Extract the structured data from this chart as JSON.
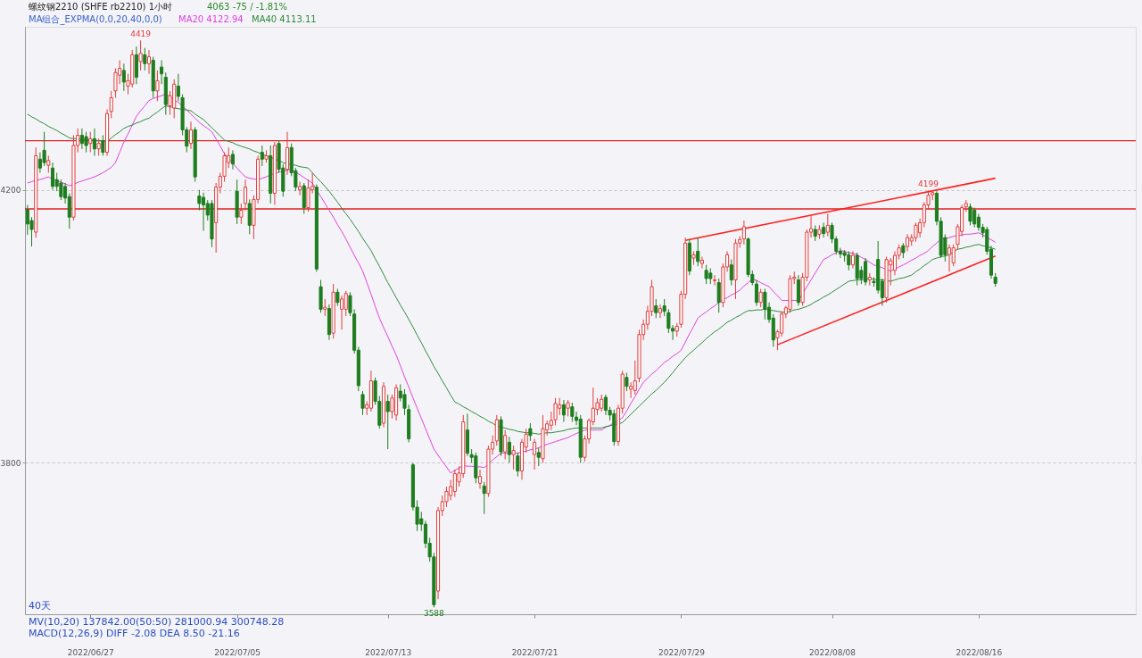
{
  "chart_data": {
    "type": "candlestick",
    "title": "螺纹钢2210 (SHFE rb2210)  1小时",
    "subtitle": "4063  -75 / -1.81%",
    "legend_title": "MA组合_EXPMA(0,0,20,40,0,0)",
    "legend": "top left",
    "ylim": [
      3578,
      4439
    ],
    "yticks": [
      3800,
      4200
    ],
    "grid": "y",
    "categories": [
      null,
      null,
      null,
      null,
      null,
      null,
      null,
      null,
      null,
      null,
      null,
      null,
      null,
      null,
      null,
      "2022/06/27",
      null,
      null,
      null,
      null,
      null,
      null,
      null,
      null,
      null,
      null,
      null,
      null,
      null,
      null,
      null,
      null,
      null,
      null,
      null,
      null,
      null,
      null,
      null,
      null,
      null,
      null,
      null,
      null,
      null,
      null,
      null,
      null,
      null,
      null,
      "2022/07/05",
      null,
      null,
      null,
      null,
      null,
      null,
      null,
      null,
      null,
      null,
      null,
      null,
      null,
      null,
      null,
      null,
      null,
      null,
      null,
      null,
      null,
      null,
      null,
      null,
      null,
      null,
      null,
      null,
      null,
      null,
      null,
      null,
      null,
      null,
      null,
      "2022/07/13",
      null,
      null,
      null,
      null,
      null,
      null,
      null,
      null,
      null,
      null,
      null,
      null,
      null,
      null,
      null,
      null,
      null,
      null,
      null,
      null,
      null,
      null,
      null,
      null,
      null,
      null,
      null,
      null,
      null,
      null,
      null,
      null,
      null,
      null,
      "2022/07/21",
      null,
      null,
      null,
      null,
      null,
      null,
      null,
      null,
      null,
      null,
      null,
      null,
      null,
      null,
      null,
      null,
      null,
      null,
      null,
      null,
      null,
      null,
      null,
      null,
      null,
      null,
      null,
      null,
      null,
      null,
      null,
      null,
      null,
      null,
      "2022/07/29",
      null,
      null,
      null,
      null,
      null,
      null,
      null,
      null,
      null,
      null,
      null,
      null,
      null,
      null,
      null,
      null,
      null,
      null,
      null,
      null,
      null,
      null,
      null,
      null,
      null,
      null,
      null,
      null,
      null,
      null,
      null,
      null,
      null,
      null,
      null,
      "2022/08/08",
      null,
      null,
      null,
      null,
      null,
      null,
      null,
      null,
      null,
      null,
      null,
      null,
      null,
      null,
      null,
      null,
      null,
      null,
      null,
      null,
      null,
      null,
      null,
      null,
      null,
      null,
      null,
      null,
      null,
      null,
      null,
      null,
      null,
      null,
      "2022/08/16",
      null,
      null,
      null,
      null
    ],
    "ohlc": [
      [
        4171,
        4178,
        4134,
        4150
      ],
      [
        4155,
        4160,
        4117,
        4142
      ],
      [
        4138,
        4262,
        4130,
        4250
      ],
      [
        4245,
        4255,
        4225,
        4232
      ],
      [
        4258,
        4285,
        4235,
        4240
      ],
      [
        4236,
        4250,
        4225,
        4243
      ],
      [
        4232,
        4240,
        4200,
        4205
      ],
      [
        4215,
        4225,
        4198,
        4205
      ],
      [
        4210,
        4215,
        4185,
        4190
      ],
      [
        4205,
        4210,
        4180,
        4188
      ],
      [
        4190,
        4195,
        4143,
        4160
      ],
      [
        4160,
        4280,
        4155,
        4265
      ],
      [
        4265,
        4290,
        4255,
        4280
      ],
      [
        4280,
        4290,
        4260,
        4268
      ],
      [
        4278,
        4285,
        4255,
        4265
      ],
      [
        4268,
        4285,
        4255,
        4275
      ],
      [
        4275,
        4290,
        4250,
        4260
      ],
      [
        4260,
        4275,
        4250,
        4268
      ],
      [
        4272,
        4280,
        4250,
        4255
      ],
      [
        4255,
        4318,
        4250,
        4312
      ],
      [
        4315,
        4345,
        4305,
        4335
      ],
      [
        4345,
        4378,
        4335,
        4372
      ],
      [
        4368,
        4390,
        4355,
        4378
      ],
      [
        4375,
        4385,
        4345,
        4358
      ],
      [
        4352,
        4370,
        4340,
        4360
      ],
      [
        4355,
        4405,
        4350,
        4398
      ],
      [
        4398,
        4410,
        4355,
        4365
      ],
      [
        4388,
        4419,
        4375,
        4400
      ],
      [
        4398,
        4408,
        4375,
        4385
      ],
      [
        4385,
        4405,
        4370,
        4395
      ],
      [
        4390,
        4395,
        4335,
        4345
      ],
      [
        4345,
        4375,
        4330,
        4360
      ],
      [
        4380,
        4390,
        4355,
        4370
      ],
      [
        4365,
        4372,
        4310,
        4325
      ],
      [
        4323,
        4345,
        4310,
        4338
      ],
      [
        4320,
        4362,
        4305,
        4355
      ],
      [
        4352,
        4370,
        4330,
        4337
      ],
      [
        4335,
        4340,
        4280,
        4288
      ],
      [
        4288,
        4292,
        4255,
        4264
      ],
      [
        4268,
        4300,
        4260,
        4288
      ],
      [
        4288,
        4292,
        4212,
        4219
      ],
      [
        4191,
        4200,
        4170,
        4180
      ],
      [
        4189,
        4196,
        4140,
        4178
      ],
      [
        4180,
        4185,
        4155,
        4163
      ],
      [
        4180,
        4185,
        4116,
        4128
      ],
      [
        4152,
        4210,
        4108,
        4204
      ],
      [
        4204,
        4225,
        4195,
        4220
      ],
      [
        4220,
        4255,
        4212,
        4250
      ],
      [
        4240,
        4262,
        4232,
        4250
      ],
      [
        4252,
        4258,
        4230,
        4238
      ],
      [
        4198,
        4215,
        4150,
        4160
      ],
      [
        4160,
        4180,
        4150,
        4170
      ],
      [
        4180,
        4215,
        4170,
        4204
      ],
      [
        4180,
        4186,
        4135,
        4148
      ],
      [
        4148,
        4192,
        4128,
        4186
      ],
      [
        4186,
        4250,
        4180,
        4245
      ],
      [
        4255,
        4265,
        4235,
        4245
      ],
      [
        4245,
        4258,
        4240,
        4250
      ],
      [
        4250,
        4265,
        4180,
        4195
      ],
      [
        4195,
        4270,
        4178,
        4265
      ],
      [
        4268,
        4272,
        4225,
        4230
      ],
      [
        4232,
        4238,
        4190,
        4198
      ],
      [
        4230,
        4285,
        4222,
        4262
      ],
      [
        4262,
        4268,
        4220,
        4225
      ],
      [
        4228,
        4232,
        4198,
        4204
      ],
      [
        4200,
        4212,
        4192,
        4205
      ],
      [
        4206,
        4210,
        4165,
        4174
      ],
      [
        4174,
        4215,
        4168,
        4203
      ],
      [
        4200,
        4225,
        4195,
        4205
      ],
      [
        4204,
        4208,
        4080,
        4084
      ],
      [
        4058,
        4068,
        4020,
        4025
      ],
      [
        4025,
        4040,
        4015,
        4028
      ],
      [
        4026,
        4032,
        3980,
        3988
      ],
      [
        3990,
        4062,
        3982,
        4050
      ],
      [
        4050,
        4055,
        4030,
        4035
      ],
      [
        4025,
        4045,
        3995,
        4040
      ],
      [
        4025,
        4052,
        4015,
        4048
      ],
      [
        4045,
        4050,
        4015,
        4020
      ],
      [
        4018,
        4025,
        3960,
        3965
      ],
      [
        3965,
        3970,
        3905,
        3913
      ],
      [
        3900,
        3905,
        3870,
        3880
      ],
      [
        3880,
        3890,
        3870,
        3885
      ],
      [
        3880,
        3935,
        3875,
        3920
      ],
      [
        3920,
        3925,
        3885,
        3890
      ],
      [
        3890,
        3898,
        3850,
        3855
      ],
      [
        3858,
        3918,
        3852,
        3912
      ],
      [
        3890,
        3900,
        3820,
        3875
      ],
      [
        3875,
        3900,
        3865,
        3895
      ],
      [
        3870,
        3915,
        3862,
        3910
      ],
      [
        3905,
        3915,
        3890,
        3895
      ],
      [
        3900,
        3908,
        3870,
        3880
      ],
      [
        3878,
        3885,
        3830,
        3835
      ],
      [
        3797,
        3800,
        3730,
        3735
      ],
      [
        3735,
        3745,
        3700,
        3710
      ],
      [
        3718,
        3728,
        3700,
        3710
      ],
      [
        3710,
        3715,
        3675,
        3682
      ],
      [
        3682,
        3690,
        3655,
        3662
      ],
      [
        3662,
        3668,
        3588,
        3592
      ],
      [
        3612,
        3735,
        3600,
        3730
      ],
      [
        3730,
        3752,
        3722,
        3743
      ],
      [
        3743,
        3765,
        3735,
        3758
      ],
      [
        3752,
        3775,
        3745,
        3765
      ],
      [
        3758,
        3790,
        3750,
        3784
      ],
      [
        3772,
        3795,
        3765,
        3785
      ],
      [
        3784,
        3870,
        3778,
        3860
      ],
      [
        3848,
        3872,
        3810,
        3814
      ],
      [
        3812,
        3820,
        3800,
        3808
      ],
      [
        3810,
        3815,
        3770,
        3778
      ],
      [
        3770,
        3790,
        3762,
        3780
      ],
      [
        3766,
        3772,
        3725,
        3755
      ],
      [
        3755,
        3825,
        3750,
        3820
      ],
      [
        3820,
        3840,
        3812,
        3830
      ],
      [
        3832,
        3870,
        3825,
        3863
      ],
      [
        3863,
        3868,
        3810,
        3816
      ],
      [
        3816,
        3848,
        3805,
        3840
      ],
      [
        3830,
        3838,
        3800,
        3812
      ],
      [
        3812,
        3825,
        3790,
        3818
      ],
      [
        3810,
        3815,
        3780,
        3788
      ],
      [
        3788,
        3835,
        3775,
        3830
      ],
      [
        3823,
        3850,
        3815,
        3842
      ],
      [
        3850,
        3858,
        3832,
        3840
      ],
      [
        3812,
        3835,
        3790,
        3830
      ],
      [
        3815,
        3822,
        3795,
        3808
      ],
      [
        3806,
        3870,
        3800,
        3850
      ],
      [
        3848,
        3862,
        3840,
        3857
      ],
      [
        3855,
        3875,
        3848,
        3862
      ],
      [
        3863,
        3895,
        3855,
        3887
      ],
      [
        3880,
        3895,
        3870,
        3885
      ],
      [
        3885,
        3892,
        3860,
        3870
      ],
      [
        3880,
        3892,
        3868,
        3888
      ],
      [
        3882,
        3888,
        3860,
        3868
      ],
      [
        3867,
        3875,
        3855,
        3862
      ],
      [
        3864,
        3870,
        3800,
        3808
      ],
      [
        3808,
        3840,
        3802,
        3835
      ],
      [
        3835,
        3865,
        3828,
        3862
      ],
      [
        3860,
        3910,
        3855,
        3880
      ],
      [
        3878,
        3895,
        3870,
        3888
      ],
      [
        3880,
        3900,
        3875,
        3893
      ],
      [
        3896,
        3900,
        3870,
        3877
      ],
      [
        3877,
        3882,
        3862,
        3870
      ],
      [
        3872,
        3878,
        3825,
        3831
      ],
      [
        3831,
        3885,
        3825,
        3880
      ],
      [
        3880,
        3935,
        3872,
        3930
      ],
      [
        3925,
        3932,
        3905,
        3912
      ],
      [
        3908,
        3918,
        3895,
        3912
      ],
      [
        3906,
        3950,
        3900,
        3920
      ],
      [
        3924,
        3995,
        3918,
        3988
      ],
      [
        3988,
        4010,
        3980,
        4003
      ],
      [
        4003,
        4030,
        3995,
        4022
      ],
      [
        4022,
        4068,
        4015,
        4058
      ],
      [
        4030,
        4040,
        4012,
        4020
      ],
      [
        4020,
        4032,
        4012,
        4026
      ],
      [
        4030,
        4040,
        4015,
        4022
      ],
      [
        4020,
        4025,
        3990,
        3997
      ],
      [
        3997,
        4002,
        3980,
        3993
      ],
      [
        3993,
        4005,
        3985,
        4000
      ],
      [
        4003,
        4052,
        3998,
        4047
      ],
      [
        4047,
        4130,
        4040,
        4122
      ],
      [
        4122,
        4128,
        4075,
        4081
      ],
      [
        4100,
        4110,
        4090,
        4105
      ],
      [
        4110,
        4130,
        4088,
        4095
      ],
      [
        4092,
        4102,
        4085,
        4097
      ],
      [
        4082,
        4090,
        4062,
        4070
      ],
      [
        4078,
        4085,
        4062,
        4070
      ],
      [
        4067,
        4075,
        4060,
        4068
      ],
      [
        4064,
        4070,
        4020,
        4035
      ],
      [
        4035,
        4092,
        4028,
        4087
      ],
      [
        4087,
        4110,
        4080,
        4105
      ],
      [
        4090,
        4098,
        4060,
        4068
      ],
      [
        4068,
        4128,
        4040,
        4122
      ],
      [
        4122,
        4132,
        4115,
        4127
      ],
      [
        4128,
        4155,
        4120,
        4146
      ],
      [
        4128,
        4130,
        4072,
        4076
      ],
      [
        4076,
        4082,
        4060,
        4064
      ],
      [
        4062,
        4068,
        4030,
        4035
      ],
      [
        4035,
        4055,
        4028,
        4050
      ],
      [
        4050,
        4055,
        4010,
        4025
      ],
      [
        4028,
        4035,
        4005,
        4010
      ],
      [
        4012,
        4018,
        3970,
        3980
      ],
      [
        3983,
        3995,
        3965,
        3992
      ],
      [
        3990,
        4022,
        3985,
        4018
      ],
      [
        4018,
        4030,
        4012,
        4027
      ],
      [
        4025,
        4075,
        4020,
        4070
      ],
      [
        4070,
        4080,
        4062,
        4072
      ],
      [
        4068,
        4075,
        4030,
        4035
      ],
      [
        4035,
        4078,
        4030,
        4072
      ],
      [
        4072,
        4142,
        4066,
        4138
      ],
      [
        4138,
        4162,
        4130,
        4143
      ],
      [
        4142,
        4148,
        4125,
        4132
      ],
      [
        4135,
        4148,
        4128,
        4142
      ],
      [
        4145,
        4152,
        4130,
        4136
      ],
      [
        4138,
        4165,
        4132,
        4148
      ],
      [
        4148,
        4152,
        4122,
        4128
      ],
      [
        4128,
        4132,
        4105,
        4110
      ],
      [
        4110,
        4115,
        4100,
        4106
      ],
      [
        4108,
        4112,
        4095,
        4104
      ],
      [
        4105,
        4110,
        4082,
        4090
      ],
      [
        4090,
        4110,
        4085,
        4104
      ],
      [
        4104,
        4108,
        4060,
        4070
      ],
      [
        4082,
        4088,
        4062,
        4070
      ],
      [
        4095,
        4100,
        4060,
        4065
      ],
      [
        4068,
        4078,
        4060,
        4072
      ],
      [
        4066,
        4072,
        4058,
        4064
      ],
      [
        4098,
        4125,
        4048,
        4053
      ],
      [
        4066,
        4070,
        4030,
        4042
      ],
      [
        4042,
        4102,
        4035,
        4098
      ],
      [
        4090,
        4100,
        4060,
        4096
      ],
      [
        4082,
        4110,
        4075,
        4104
      ],
      [
        4104,
        4120,
        4098,
        4115
      ],
      [
        4118,
        4122,
        4100,
        4108
      ],
      [
        4117,
        4135,
        4110,
        4130
      ],
      [
        4125,
        4135,
        4118,
        4130
      ],
      [
        4130,
        4152,
        4124,
        4148
      ],
      [
        4137,
        4158,
        4130,
        4152
      ],
      [
        4152,
        4182,
        4145,
        4178
      ],
      [
        4178,
        4199,
        4172,
        4192
      ],
      [
        4193,
        4199,
        4185,
        4196
      ],
      [
        4195,
        4198,
        4148,
        4154
      ],
      [
        4154,
        4160,
        4100,
        4104
      ],
      [
        4130,
        4135,
        4095,
        4105
      ],
      [
        4105,
        4120,
        4080,
        4115
      ],
      [
        4093,
        4120,
        4088,
        4115
      ],
      [
        4120,
        4150,
        4112,
        4146
      ],
      [
        4139,
        4178,
        4132,
        4174
      ],
      [
        4175,
        4185,
        4168,
        4180
      ],
      [
        4175,
        4180,
        4148,
        4154
      ],
      [
        4170,
        4174,
        4145,
        4150
      ],
      [
        4160,
        4165,
        4140,
        4145
      ],
      [
        4145,
        4150,
        4130,
        4137
      ],
      [
        4142,
        4146,
        4105,
        4110
      ],
      [
        4113,
        4118,
        4070,
        4075
      ],
      [
        4072,
        4078,
        4058,
        4063
      ]
    ],
    "series": [
      {
        "type": "line",
        "name": "MA20 4122.94",
        "color": "#e040e0",
        "values": [
          4210,
          4212,
          4214,
          4215,
          4217,
          4219,
          4216,
          4214,
          4211,
          4209,
          4206,
          4208,
          4211,
          4213,
          4215,
          4217,
          4219,
          4222,
          4225,
          4229,
          4233,
          4240,
          4255,
          4270,
          4282,
          4295,
          4308,
          4316,
          4323,
          4331,
          4334,
          4336,
          4338,
          4340,
          4337,
          4332,
          4328,
          4323,
          4317,
          4311,
          4305,
          4299,
          4294,
          4290,
          4285,
          4275,
          4264,
          4253,
          4246,
          4239,
          4232,
          4225,
          4219,
          4217,
          4216,
          4215,
          4217,
          4219,
          4222,
          4224,
          4226,
          4227,
          4229,
          4230,
          4226,
          4222,
          4218,
          4214,
          4210,
          4200,
          4190,
          4180,
          4170,
          4160,
          4149,
          4139,
          4128,
          4116,
          4104,
          4093,
          4081,
          4064,
          4047,
          4029,
          4012,
          3998,
          3985,
          3971,
          3958,
          3942,
          3926,
          3911,
          3895,
          3880,
          3865,
          3850,
          3835,
          3820,
          3811,
          3802,
          3794,
          3785,
          3789,
          3792,
          3796,
          3795,
          3795,
          3794,
          3794,
          3793,
          3798,
          3804,
          3809,
          3814,
          3814,
          3814,
          3814,
          3814,
          3816,
          3817,
          3819,
          3820,
          3822,
          3825,
          3827,
          3829,
          3831,
          3833,
          3835,
          3837,
          3840,
          3843,
          3845,
          3848,
          3848,
          3848,
          3848,
          3848,
          3852,
          3855,
          3859,
          3862,
          3866,
          3876,
          3887,
          3897,
          3908,
          3918,
          3924,
          3930,
          3935,
          3941,
          3947,
          3951,
          3956,
          3960,
          3965,
          3977,
          3989,
          4000,
          4012,
          4017,
          4021,
          4026,
          4030,
          4035,
          4039,
          4042,
          4046,
          4049,
          4053,
          4059,
          4064,
          4070,
          4067,
          4064,
          4061,
          4058,
          4051,
          4045,
          4038,
          4038,
          4038,
          4038,
          4038,
          null,
          4058,
          4068,
          4078,
          4088,
          4098,
          4101,
          4105,
          4108,
          4111,
          4110,
          4108,
          4107,
          4105,
          4101,
          4098,
          4094,
          4090,
          4088,
          4086,
          4083,
          4081,
          4084,
          4087,
          4090,
          4093,
          4097,
          4100,
          4104,
          4107,
          4111,
          4117,
          4122,
          4128,
          4129,
          4130,
          4132,
          4133,
          4134,
          4135,
          4135,
          4136,
          4137,
          4134,
          4130,
          4127,
          4123
        ]
      },
      {
        "type": "line",
        "name": "MA40 4113.11",
        "color": "#2e8b3a",
        "values": [
          4311,
          4307,
          4304,
          4300,
          4297,
          4293,
          4290,
          4287,
          4283,
          4280,
          4276,
          4275,
          4275,
          4274,
          4274,
          4273,
          4273,
          4272,
          4272,
          4271,
          4276,
          4281,
          4285,
          4290,
          4293,
          4295,
          4298,
          4300,
          4303,
          4305,
          4310,
          4314,
          4319,
          4323,
          4322,
          4320,
          4319,
          4318,
          4317,
          4316,
          4311,
          4307,
          4303,
          4297,
          4291,
          4285,
          4279,
          4273,
          4271,
          4269,
          4266,
          4264,
          4262,
          4260,
          4257,
          4255,
          4252,
          4250,
          4248,
          4245,
          4243,
          4240,
          4238,
          4237,
          4236,
          4234,
          4233,
          4232,
          4225,
          4218,
          4212,
          4205,
          4198,
          4190,
          4182,
          4173,
          4165,
          4157,
          4148,
          4139,
          4129,
          4120,
          4111,
          4099,
          4088,
          4076,
          4064,
          4053,
          4042,
          4031,
          4021,
          4010,
          3999,
          3987,
          3976,
          3964,
          3953,
          3941,
          3931,
          3920,
          3910,
          3899,
          3889,
          3886,
          3882,
          3879,
          3875,
          3872,
          3868,
          3865,
          3861,
          3858,
          3854,
          3852,
          3851,
          3849,
          3848,
          3846,
          3845,
          3844,
          3844,
          3843,
          3842,
          3843,
          3844,
          3844,
          3845,
          3846,
          3847,
          3849,
          3850,
          3851,
          3851,
          3851,
          3851,
          3851,
          3851,
          3851,
          3853,
          3854,
          3856,
          3857,
          3859,
          3865,
          3871,
          3877,
          3883,
          3889,
          3895,
          3901,
          3906,
          3912,
          3918,
          3925,
          3932,
          3940,
          3947,
          3954,
          3960,
          3965,
          3971,
          3976,
          3982,
          3987,
          3992,
          3996,
          4001,
          4006,
          4009,
          4013,
          4016,
          4020,
          4023,
          4023,
          4024,
          4024,
          4025,
          4024,
          4023,
          4022,
          4021,
          4020,
          4022,
          4024,
          4025,
          4027,
          4029,
          4032,
          4036,
          4039,
          4043,
          4046,
          4050,
          4054,
          4058,
          4062,
          4066,
          4067,
          4068,
          4068,
          4069,
          4070,
          4069,
          4068,
          4068,
          4067,
          4066,
          4068,
          4070,
          4071,
          4073,
          4075,
          4080,
          4084,
          4089,
          4093,
          4098,
          4100,
          4102,
          4103,
          4105,
          4109,
          4113,
          4114,
          4116,
          4117,
          4119,
          4120,
          4118,
          4117,
          4115,
          4113
        ]
      },
      {
        "type": "line",
        "color": "#ff2020",
        "values": [
          null,
          null,
          null,
          null,
          null,
          null,
          null,
          null,
          null,
          null,
          null,
          null,
          null,
          null,
          null,
          null,
          null,
          null,
          null,
          null,
          null,
          null,
          null,
          null,
          null,
          null,
          null,
          null,
          null,
          null,
          null,
          null,
          null,
          null,
          null,
          null,
          null,
          null,
          null,
          null,
          null,
          null,
          null,
          null,
          null,
          null,
          null,
          null,
          null,
          null,
          null,
          null,
          null,
          null,
          null,
          null,
          null,
          null,
          null,
          null,
          null,
          null,
          null,
          null,
          null,
          null,
          null,
          null,
          null,
          null,
          null,
          null,
          null,
          null,
          null,
          null,
          null,
          null,
          null,
          null,
          null,
          null,
          null,
          null,
          null,
          null,
          null,
          null,
          null,
          null,
          null,
          null,
          null,
          null,
          null,
          null,
          null,
          null,
          null,
          null,
          null,
          null,
          null,
          null,
          null,
          null,
          null,
          null,
          null,
          null,
          null,
          null,
          null,
          null,
          null,
          null,
          null,
          null,
          null,
          null,
          null,
          null,
          null,
          null,
          null,
          null,
          null,
          null,
          null,
          null,
          null,
          null,
          null,
          null,
          null,
          null,
          null,
          null,
          null,
          null,
          null,
          null,
          null,
          null,
          null,
          null,
          null,
          null,
          null,
          null,
          null,
          null,
          null,
          null,
          null,
          null,
          null,
          4126,
          null,
          null,
          null,
          null,
          null,
          null,
          null,
          null,
          null,
          null,
          null,
          null,
          null,
          null,
          null,
          null,
          null,
          null,
          null,
          null,
          null,
          null,
          null,
          null,
          null,
          null,
          null,
          null,
          null,
          null,
          null,
          null,
          null,
          null,
          null,
          null,
          null,
          null,
          null,
          null,
          null,
          null,
          null,
          null,
          null,
          null,
          null,
          null,
          null,
          null,
          null,
          null,
          null,
          null,
          null,
          null,
          null,
          null,
          null,
          null,
          null,
          null,
          null,
          null,
          null,
          null,
          null,
          null,
          null,
          null,
          null,
          null,
          null,
          4217
        ]
      },
      {
        "type": "line",
        "color": "#ff2020",
        "values": [
          null,
          null,
          null,
          null,
          null,
          null,
          null,
          null,
          null,
          null,
          null,
          null,
          null,
          null,
          null,
          null,
          null,
          null,
          null,
          null,
          null,
          null,
          null,
          null,
          null,
          null,
          null,
          null,
          null,
          null,
          null,
          null,
          null,
          null,
          null,
          null,
          null,
          null,
          null,
          null,
          null,
          null,
          null,
          null,
          null,
          null,
          null,
          null,
          null,
          null,
          null,
          null,
          null,
          null,
          null,
          null,
          null,
          null,
          null,
          null,
          null,
          null,
          null,
          null,
          null,
          null,
          null,
          null,
          null,
          null,
          null,
          null,
          null,
          null,
          null,
          null,
          null,
          null,
          null,
          null,
          null,
          null,
          null,
          null,
          null,
          null,
          null,
          null,
          null,
          null,
          null,
          null,
          null,
          null,
          null,
          null,
          null,
          null,
          null,
          null,
          null,
          null,
          null,
          null,
          null,
          null,
          null,
          null,
          null,
          null,
          null,
          null,
          null,
          null,
          null,
          null,
          null,
          null,
          null,
          null,
          null,
          null,
          null,
          null,
          null,
          null,
          null,
          null,
          null,
          null,
          null,
          null,
          null,
          null,
          null,
          null,
          null,
          null,
          null,
          null,
          null,
          null,
          null,
          null,
          null,
          null,
          null,
          null,
          null,
          null,
          null,
          null,
          null,
          null,
          null,
          null,
          null,
          null,
          null,
          null,
          null,
          null,
          null,
          null,
          null,
          null,
          null,
          null,
          null,
          null,
          null,
          null,
          null,
          null,
          null,
          null,
          null,
          null,
          null,
          3973,
          null,
          null,
          null,
          null,
          null,
          null,
          null,
          null,
          null,
          null,
          null,
          null,
          null,
          null,
          null,
          null,
          null,
          null,
          null,
          null,
          null,
          null,
          null,
          null,
          null,
          null,
          null,
          null,
          null,
          null,
          null,
          null,
          null,
          null,
          null,
          null,
          null,
          null,
          null,
          null,
          null,
          null,
          null,
          null,
          null,
          null,
          null,
          null,
          null,
          null,
          null,
          4103
        ]
      }
    ],
    "ref_lines": [
      {
        "axis": "y",
        "value": 4272,
        "color": "#e02020"
      },
      {
        "axis": "y",
        "value": 4172,
        "color": "#e02020"
      }
    ],
    "annotations": [
      {
        "text": "4419",
        "y": 4419
      },
      {
        "text": "3588",
        "y": 3588
      },
      {
        "text": "4199",
        "y": 4199
      },
      "40天",
      "MV(10,20)  137842.00(50:50)  281000.94  300748.28",
      "MACD(12,26,9)  DIFF -2.08  DEA 8.50  -21.16"
    ]
  }
}
